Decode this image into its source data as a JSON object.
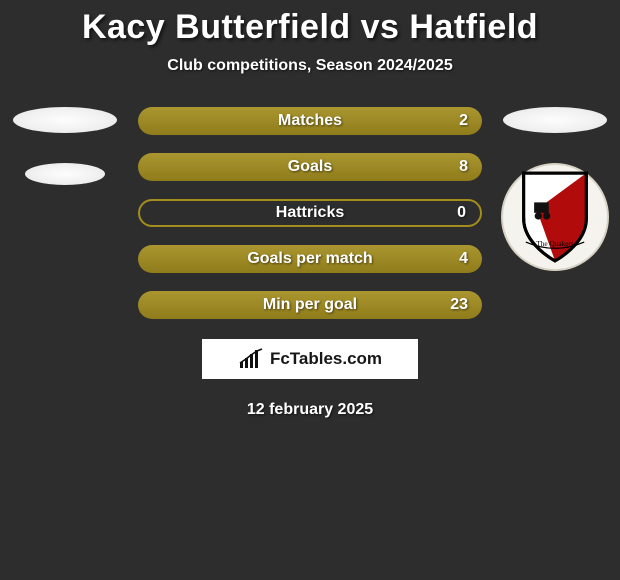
{
  "title": "Kacy Butterfield vs Hatfield",
  "subtitle": "Club competitions, Season 2024/2025",
  "date": "12 february 2025",
  "brand": "FcTables.com",
  "colors": {
    "bar_filled": "#a38d1e",
    "bar_empty_border": "#a38d1e",
    "background": "#2d2d2d"
  },
  "stats": [
    {
      "label": "Matches",
      "value": "2",
      "fill": 1.0
    },
    {
      "label": "Goals",
      "value": "8",
      "fill": 1.0
    },
    {
      "label": "Hattricks",
      "value": "0",
      "fill": 0.0
    },
    {
      "label": "Goals per match",
      "value": "4",
      "fill": 1.0
    },
    {
      "label": "Min per goal",
      "value": "23",
      "fill": 1.0
    }
  ],
  "crest_label": "The Quakers"
}
